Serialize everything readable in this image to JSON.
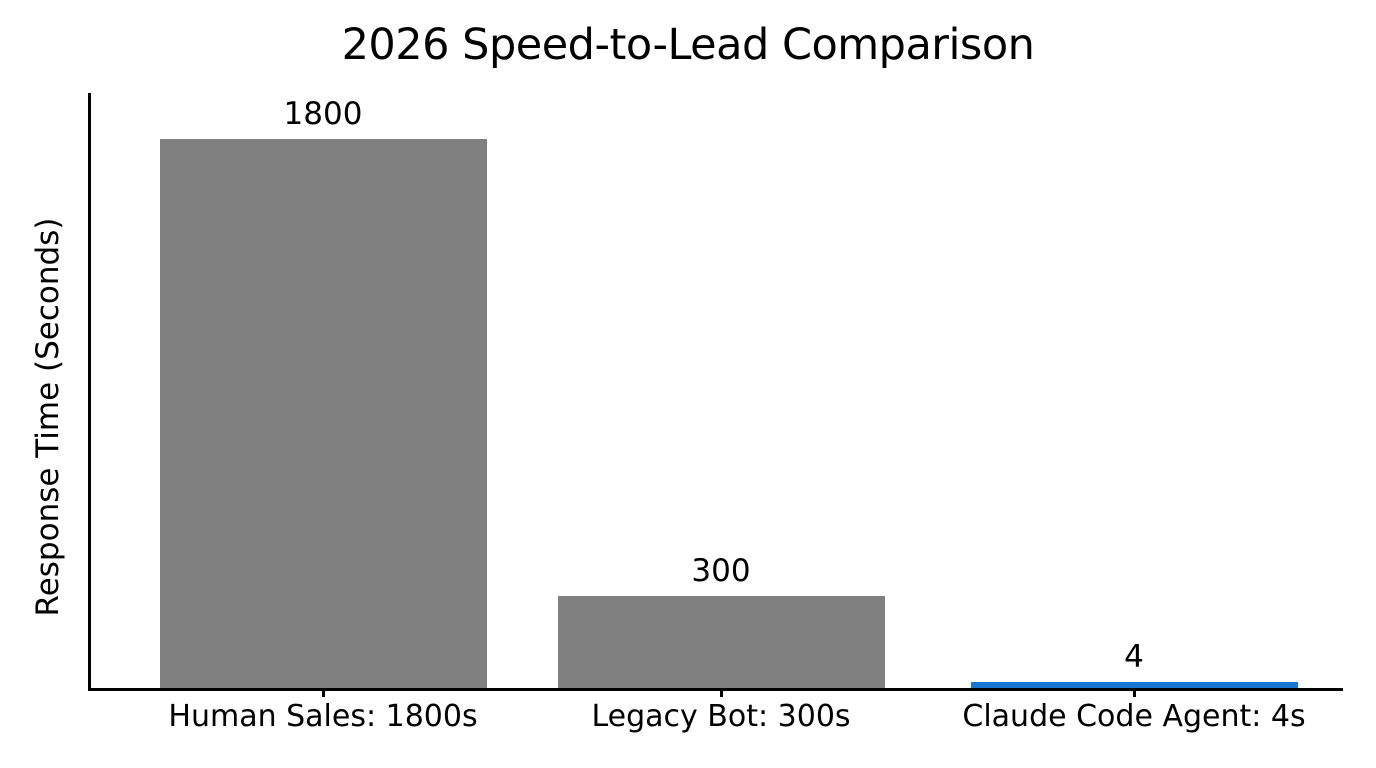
{
  "chart_data": {
    "type": "bar",
    "title": "2026 Speed-to-Lead Comparison",
    "xlabel": "",
    "ylabel": "Response Time (Seconds)",
    "categories": [
      "Human Sales: 1800s",
      "Legacy Bot: 300s",
      "Claude Code Agent: 4s"
    ],
    "values": [
      1800,
      300,
      4
    ],
    "value_labels": [
      "1800",
      "300",
      "4"
    ],
    "bar_names": [
      "human-sales",
      "legacy-bot",
      "claude-code-agent"
    ],
    "bar_colors": [
      "#808080",
      "#808080",
      "#1976d2"
    ],
    "ylim": [
      0,
      1950
    ],
    "grid": false,
    "legend": "none",
    "background_color": "#ffffff",
    "axis_color": "#000000",
    "text_color": "#000000"
  }
}
